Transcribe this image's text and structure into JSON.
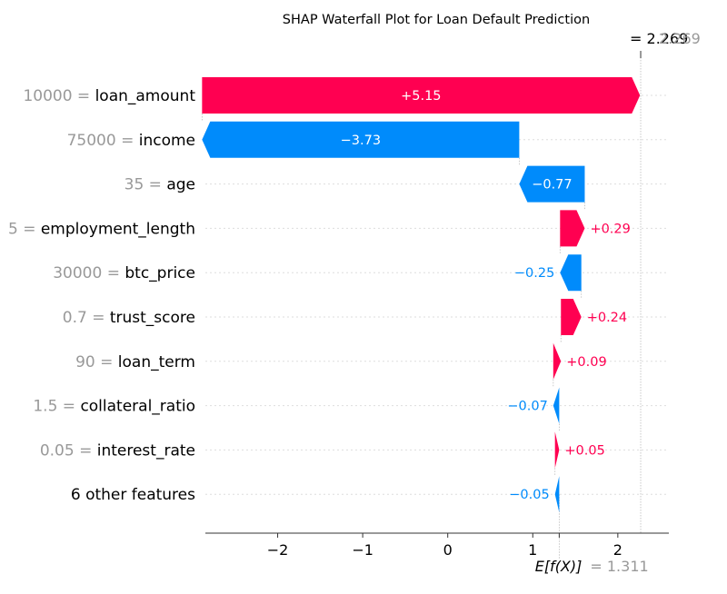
{
  "colors": {
    "positive": "#ff0051",
    "negative": "#008bfb",
    "feature_value": "#999999",
    "grid": "#cccccc"
  },
  "chart_data": {
    "type": "bar",
    "subtype": "shap-waterfall",
    "title": "SHAP Waterfall Plot for Loan Default Prediction",
    "fx_label": "=",
    "fx_value": "2.269",
    "fx_value_gray": "2.269",
    "base_label": "E[f(X)]",
    "base_value_text": "= 1.311",
    "base_value": 1.311,
    "fx": 2.269,
    "xlim": [
      -2.85,
      2.6
    ],
    "xticks": [
      -2,
      -1,
      0,
      1,
      2
    ],
    "xtick_labels": [
      "−2",
      "−1",
      "0",
      "1",
      "2"
    ],
    "features": [
      {
        "value": "10000 =",
        "name": "loan_amount",
        "shap": 5.15,
        "label": "+5.15",
        "label_inside": true
      },
      {
        "value": "75000 =",
        "name": "income",
        "shap": -3.73,
        "label": "−3.73",
        "label_inside": true
      },
      {
        "value": "35 =",
        "name": "age",
        "shap": -0.77,
        "label": "−0.77",
        "label_inside": true
      },
      {
        "value": "5 =",
        "name": "employment_length",
        "shap": 0.29,
        "label": "+0.29",
        "label_inside": false
      },
      {
        "value": "30000 =",
        "name": "btc_price",
        "shap": -0.25,
        "label": "−0.25",
        "label_inside": false
      },
      {
        "value": "0.7 =",
        "name": "trust_score",
        "shap": 0.24,
        "label": "+0.24",
        "label_inside": false
      },
      {
        "value": "90 =",
        "name": "loan_term",
        "shap": 0.09,
        "label": "+0.09",
        "label_inside": false
      },
      {
        "value": "1.5 =",
        "name": "collateral_ratio",
        "shap": -0.07,
        "label": "−0.07",
        "label_inside": false
      },
      {
        "value": "0.05 =",
        "name": "interest_rate",
        "shap": 0.05,
        "label": "+0.05",
        "label_inside": false
      },
      {
        "value": "",
        "name": "6 other features",
        "shap": -0.05,
        "label": "−0.05",
        "label_inside": false
      }
    ]
  }
}
